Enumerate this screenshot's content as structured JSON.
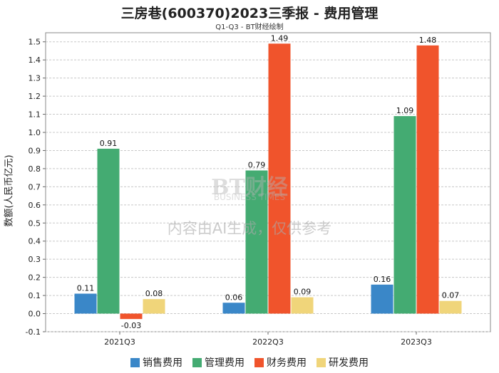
{
  "chart_data": {
    "type": "bar",
    "title": "三房巷(600370)2023三季报 - 费用管理",
    "subtitle": "Q1-Q3 - BT财经绘制",
    "ylabel": "数额(人民币亿元)",
    "xlabel": "",
    "categories": [
      "2021Q3",
      "2022Q3",
      "2023Q3"
    ],
    "ylim": [
      -0.1,
      1.55
    ],
    "yticks": [
      -0.1,
      0.0,
      0.1,
      0.2,
      0.3,
      0.4,
      0.5,
      0.6,
      0.7,
      0.8,
      0.9,
      1.0,
      1.1,
      1.2,
      1.3,
      1.4,
      1.5
    ],
    "grid": true,
    "legend_position": "bottom",
    "series": [
      {
        "name": "销售费用",
        "color": "#3a87c8",
        "values": [
          0.11,
          0.06,
          0.16
        ]
      },
      {
        "name": "管理费用",
        "color": "#44ab72",
        "values": [
          0.91,
          0.79,
          1.09
        ]
      },
      {
        "name": "财务费用",
        "color": "#f0542c",
        "values": [
          -0.03,
          1.49,
          1.48
        ]
      },
      {
        "name": "研发费用",
        "color": "#f0d57a",
        "values": [
          0.08,
          0.09,
          0.07
        ]
      }
    ]
  },
  "watermark": {
    "logo": "BT财经",
    "logo_sub": "BUSINESS TIMES",
    "text": "内容由AI生成，仅供参考"
  }
}
